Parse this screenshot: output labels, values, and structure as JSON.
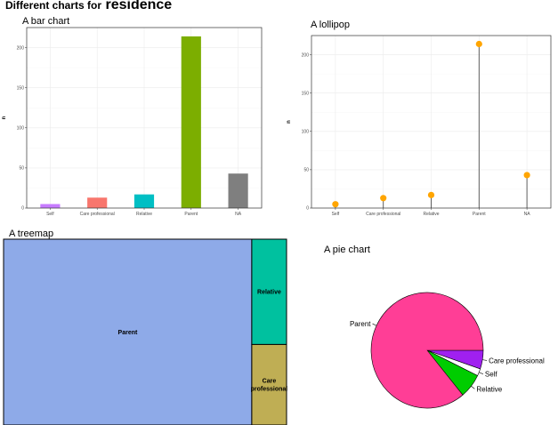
{
  "header": {
    "title_prefix": "Different charts for",
    "title_keyword": "residence"
  },
  "chart_data": [
    {
      "type": "bar",
      "title": "A bar chart",
      "categories": [
        "Self",
        "Care professional",
        "Relative",
        "Parent",
        "NA"
      ],
      "values": [
        5,
        13,
        17,
        214,
        43
      ],
      "colors": [
        "#c77cff",
        "#f8766d",
        "#00bfc4",
        "#7cae00",
        "#7f7f7f"
      ],
      "xlabel": "",
      "ylabel": "n",
      "ylim": [
        0,
        225
      ],
      "yticks": [
        0,
        50,
        100,
        150,
        200
      ],
      "grid": true
    },
    {
      "type": "scatter",
      "title": "A lollipop",
      "categories": [
        "Self",
        "Care professional",
        "Relative",
        "Parent",
        "NA"
      ],
      "values": [
        5,
        13,
        17,
        214,
        43
      ],
      "color": "#ffa500",
      "xlabel": "",
      "ylabel": "n",
      "ylim": [
        0,
        225
      ],
      "yticks": [
        0,
        50,
        100,
        150,
        200
      ],
      "grid": true
    },
    {
      "type": "treemap",
      "title": "A treemap",
      "categories": [
        "Parent",
        "Relative",
        "Care professional"
      ],
      "labels": [
        "Parent",
        "Relative",
        "Care\nprofessional"
      ],
      "values": [
        214,
        17,
        13
      ],
      "colors": [
        "#8eaae8",
        "#00c19f",
        "#bfae54"
      ]
    },
    {
      "type": "pie",
      "title": "A pie chart",
      "categories": [
        "Care professional",
        "Self",
        "Relative",
        "Parent"
      ],
      "values": [
        13,
        5,
        17,
        214
      ],
      "colors": [
        "#a020f0",
        "#ffffff",
        "#00cd00",
        "#ff3e96"
      ]
    }
  ]
}
